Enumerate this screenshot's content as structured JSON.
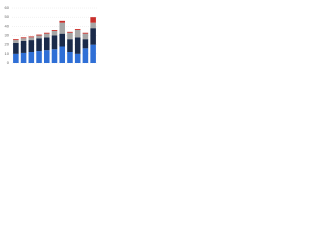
{
  "chart_data": {
    "type": "stacked_bar",
    "categories": [
      null,
      null,
      null,
      null,
      null,
      null,
      null,
      null,
      null,
      null,
      null
    ],
    "series": [
      {
        "color": "#2f6fd6",
        "values": [
          10,
          11,
          12,
          13,
          14,
          15,
          18,
          12,
          10,
          16,
          20
        ]
      },
      {
        "color": "#1a2a4a",
        "values": [
          12,
          13,
          13,
          14,
          14,
          15,
          14,
          14,
          18,
          10,
          18
        ]
      },
      {
        "color": "#a6a6a6",
        "values": [
          3,
          3,
          3,
          3,
          4,
          5,
          12,
          7,
          8,
          6,
          6
        ]
      },
      {
        "color": "#c9302c",
        "values": [
          1,
          1,
          1,
          1,
          1,
          1,
          2,
          1,
          1,
          1,
          6
        ]
      }
    ],
    "ylim": [
      0,
      60
    ],
    "yticks": [
      0,
      10,
      20,
      30,
      40,
      50,
      60
    ],
    "grid": true
  }
}
